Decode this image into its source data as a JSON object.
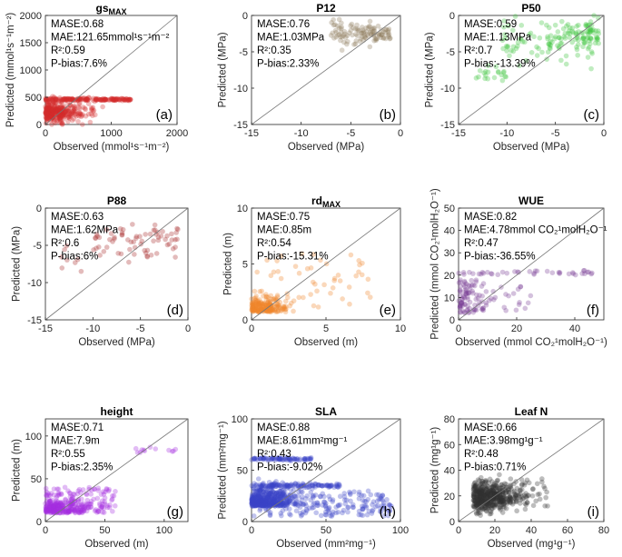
{
  "chart_data": [
    {
      "id": "a",
      "type": "scatter",
      "title": "gs",
      "title_sub": "MAX",
      "xlabel": "Observed (mmol¹s⁻¹m⁻²)",
      "ylabel": "Predicted (mmol¹s⁻¹m⁻²)",
      "xlim": [
        0,
        2000
      ],
      "ylim": [
        0,
        2000
      ],
      "xticks": [
        0,
        1000,
        2000
      ],
      "yticks": [
        0,
        500,
        1000,
        1500,
        2000
      ],
      "stats": [
        "MASE:0.68",
        "MAE:121.65mmol¹s⁻¹m⁻²",
        "R²:0.59",
        "P-bias:7.6%"
      ],
      "panel_letter": "(a)",
      "color": "#d42d2d"
    },
    {
      "id": "b",
      "type": "scatter",
      "title": "P12",
      "title_sub": "",
      "xlabel": "Observed (MPa)",
      "ylabel": "Predicted (MPa)",
      "xlim": [
        -15,
        0
      ],
      "ylim": [
        -15,
        0
      ],
      "xticks": [
        -15,
        -10,
        -5,
        0
      ],
      "yticks": [
        -15,
        -10,
        -5,
        0
      ],
      "stats": [
        "MASE:0.76",
        "MAE:1.03MPa",
        "R²:0.35",
        "P-bias:2.33%"
      ],
      "panel_letter": "(b)",
      "color": "#8c7a5a"
    },
    {
      "id": "c",
      "type": "scatter",
      "title": "P50",
      "title_sub": "",
      "xlabel": "Observed (MPa)",
      "ylabel": "Predicted (MPa)",
      "xlim": [
        -15,
        0
      ],
      "ylim": [
        -15,
        0
      ],
      "xticks": [
        -15,
        -10,
        -5,
        0
      ],
      "yticks": [
        -15,
        -10,
        -5,
        0
      ],
      "stats": [
        "MASE:0.59",
        "MAE:1.13MPa",
        "R²:0.7",
        "P-bias:-13.39%"
      ],
      "panel_letter": "(c)",
      "color": "#3cc43c"
    },
    {
      "id": "d",
      "type": "scatter",
      "title": "P88",
      "title_sub": "",
      "xlabel": "Observed (MPa)",
      "ylabel": "Predicted (MPa)",
      "xlim": [
        -15,
        0
      ],
      "ylim": [
        -15,
        0
      ],
      "xticks": [
        -15,
        -10,
        -5,
        0
      ],
      "yticks": [
        -15,
        -10,
        -5,
        0
      ],
      "stats": [
        "MASE:0.63",
        "MAE:1.62MPa",
        "R²:0.6",
        "P-bias:6%"
      ],
      "panel_letter": "(d)",
      "color": "#a82a2a"
    },
    {
      "id": "e",
      "type": "scatter",
      "title": "rd",
      "title_sub": "MAX",
      "xlabel": "Observed (m)",
      "ylabel": "Predicted (m)",
      "xlim": [
        0,
        10
      ],
      "ylim": [
        0,
        10
      ],
      "xticks": [
        0,
        5,
        10
      ],
      "yticks": [
        0,
        5,
        10
      ],
      "stats": [
        "MASE:0.75",
        "MAE:0.85m",
        "R²:0.54",
        "P-bias:-15.31%"
      ],
      "panel_letter": "(e)",
      "color": "#f0872a"
    },
    {
      "id": "f",
      "type": "scatter",
      "title": "WUE",
      "title_sub": "",
      "xlabel": "Observed (mmol CO₂¹molH₂O⁻¹)",
      "ylabel": "Predicted (mmol CO₂¹molH₂O⁻¹)",
      "xlim": [
        0,
        50
      ],
      "ylim": [
        0,
        50
      ],
      "xticks": [
        0,
        20,
        40
      ],
      "yticks": [
        0,
        10,
        20,
        30,
        40,
        50
      ],
      "stats": [
        "MASE:0.82",
        "MAE:4.78mmol CO₂¹molH₂O⁻¹",
        "R²:0.47",
        "P-bias:-36.55%"
      ],
      "panel_letter": "(f)",
      "color": "#7a3d96"
    },
    {
      "id": "g",
      "type": "scatter",
      "title": "height",
      "title_sub": "",
      "xlabel": "Observed (m)",
      "ylabel": "Predicted (m)",
      "xlim": [
        0,
        120
      ],
      "ylim": [
        0,
        120
      ],
      "xticks": [
        0,
        50,
        100
      ],
      "yticks": [
        0,
        50,
        100
      ],
      "stats": [
        "MASE:0.71",
        "MAE:7.9m",
        "R²:0.55",
        "P-bias:2.35%"
      ],
      "panel_letter": "(g)",
      "color": "#a62ee0"
    },
    {
      "id": "h",
      "type": "scatter",
      "title": "SLA",
      "title_sub": "",
      "xlabel": "Observed (mm²mg⁻¹)",
      "ylabel": "Predicted (mm²mg⁻¹)",
      "xlim": [
        0,
        100
      ],
      "ylim": [
        0,
        100
      ],
      "xticks": [
        0,
        50,
        100
      ],
      "yticks": [
        0,
        50,
        100
      ],
      "stats": [
        "MASE:0.88",
        "MAE:8.61mm²mg⁻¹",
        "R²:0.43",
        "P-bias:-9.02%"
      ],
      "panel_letter": "(h)",
      "color": "#3a45c8"
    },
    {
      "id": "i",
      "type": "scatter",
      "title": "Leaf N",
      "title_sub": "",
      "xlabel": "Observed (mg¹g⁻¹)",
      "ylabel": "Predicted (mg¹g⁻¹)",
      "xlim": [
        0,
        80
      ],
      "ylim": [
        0,
        80
      ],
      "xticks": [
        0,
        20,
        40,
        60,
        80
      ],
      "yticks": [
        0,
        20,
        40,
        60,
        80
      ],
      "stats": [
        "MASE:0.66",
        "MAE:3.98mg¹g⁻¹",
        "R²:0.48",
        "P-bias:0.71%"
      ],
      "panel_letter": "(i)",
      "color": "#333333"
    }
  ]
}
